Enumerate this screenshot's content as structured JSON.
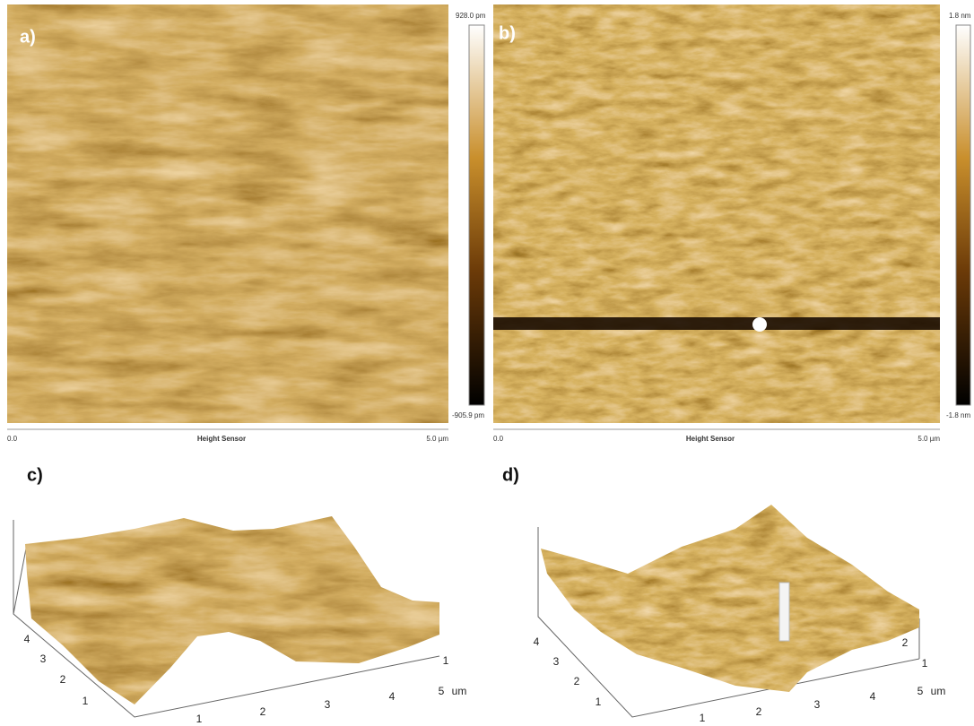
{
  "panels": [
    {
      "label": "a)",
      "colorbar": {
        "max": "928.0 pm",
        "min": "-905.9 pm"
      },
      "scale": {
        "start": "0.0",
        "title": "Height Sensor",
        "end": "5.0 µm"
      }
    },
    {
      "label": "b)",
      "colorbar": {
        "max": "1.8 nm",
        "min": "-1.8 nm"
      },
      "scale": {
        "start": "0.0",
        "title": "Height Sensor",
        "end": "5.0 µm"
      }
    }
  ],
  "views_3d": [
    {
      "label": "c)",
      "y_ticks": [
        "4",
        "3",
        "2",
        "1"
      ],
      "x_ticks": [
        "1",
        "2",
        "3",
        "4",
        "5"
      ],
      "unit": "um",
      "z_ticks": [
        "1"
      ]
    },
    {
      "label": "d)",
      "y_ticks": [
        "4",
        "3",
        "2",
        "1"
      ],
      "x_ticks": [
        "1",
        "2",
        "3",
        "4",
        "5"
      ],
      "unit": "um",
      "z_ticks": [
        "2",
        "1"
      ]
    }
  ]
}
